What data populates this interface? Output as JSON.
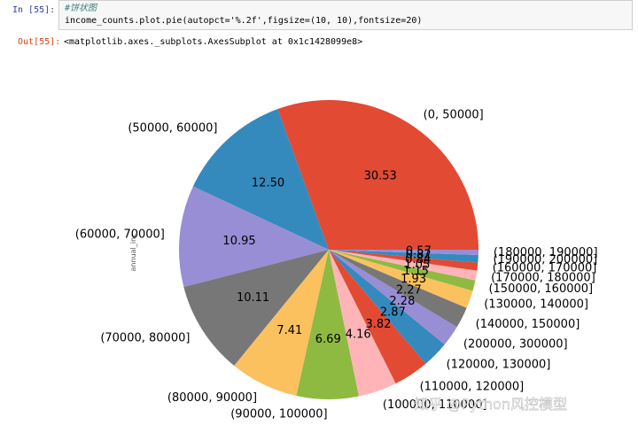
{
  "cell": {
    "in_prompt": "In [55]:",
    "comment": "#饼状图",
    "code": "income_counts.plot.pie(autopct='%.2f',figsize=(10, 10),fontsize=20)",
    "out_prompt": "Out[55]:",
    "output": "<matplotlib.axes._subplots.AxesSubplot at 0x1c1428099e8>"
  },
  "chart_data": {
    "type": "pie",
    "ylabel": "annual_inc",
    "categories": [
      "(0, 50000]",
      "(50000, 60000]",
      "(60000, 70000]",
      "(70000, 80000]",
      "(80000, 90000]",
      "(90000, 100000]",
      "(100000, 110000]",
      "(110000, 120000]",
      "(120000, 130000]",
      "(200000, 300000]",
      "(140000, 150000]",
      "(130000, 140000]",
      "(150000, 160000]",
      "(170000, 180000]",
      "(160000, 170000]",
      "(190000, 200000]",
      "(180000, 190000]"
    ],
    "values": [
      30.53,
      12.5,
      10.95,
      10.11,
      7.41,
      6.69,
      4.16,
      3.82,
      2.87,
      2.28,
      2.27,
      1.93,
      1.15,
      1.05,
      0.84,
      0.82,
      0.57
    ],
    "value_labels": [
      "30.53",
      "12.50",
      "10.95",
      "10.11",
      "7.41",
      "6.69",
      "4.16",
      "3.82",
      "2.87",
      "2.28",
      "2.27",
      "1.93",
      "1.15",
      "1.05",
      "0.84",
      "0.82",
      "0.57"
    ],
    "colors": [
      "#E24A33",
      "#348ABD",
      "#988ED5",
      "#777777",
      "#FBC15E",
      "#8EBA42",
      "#FFB5B8"
    ]
  },
  "watermark": "知乎 @Python风控模型"
}
